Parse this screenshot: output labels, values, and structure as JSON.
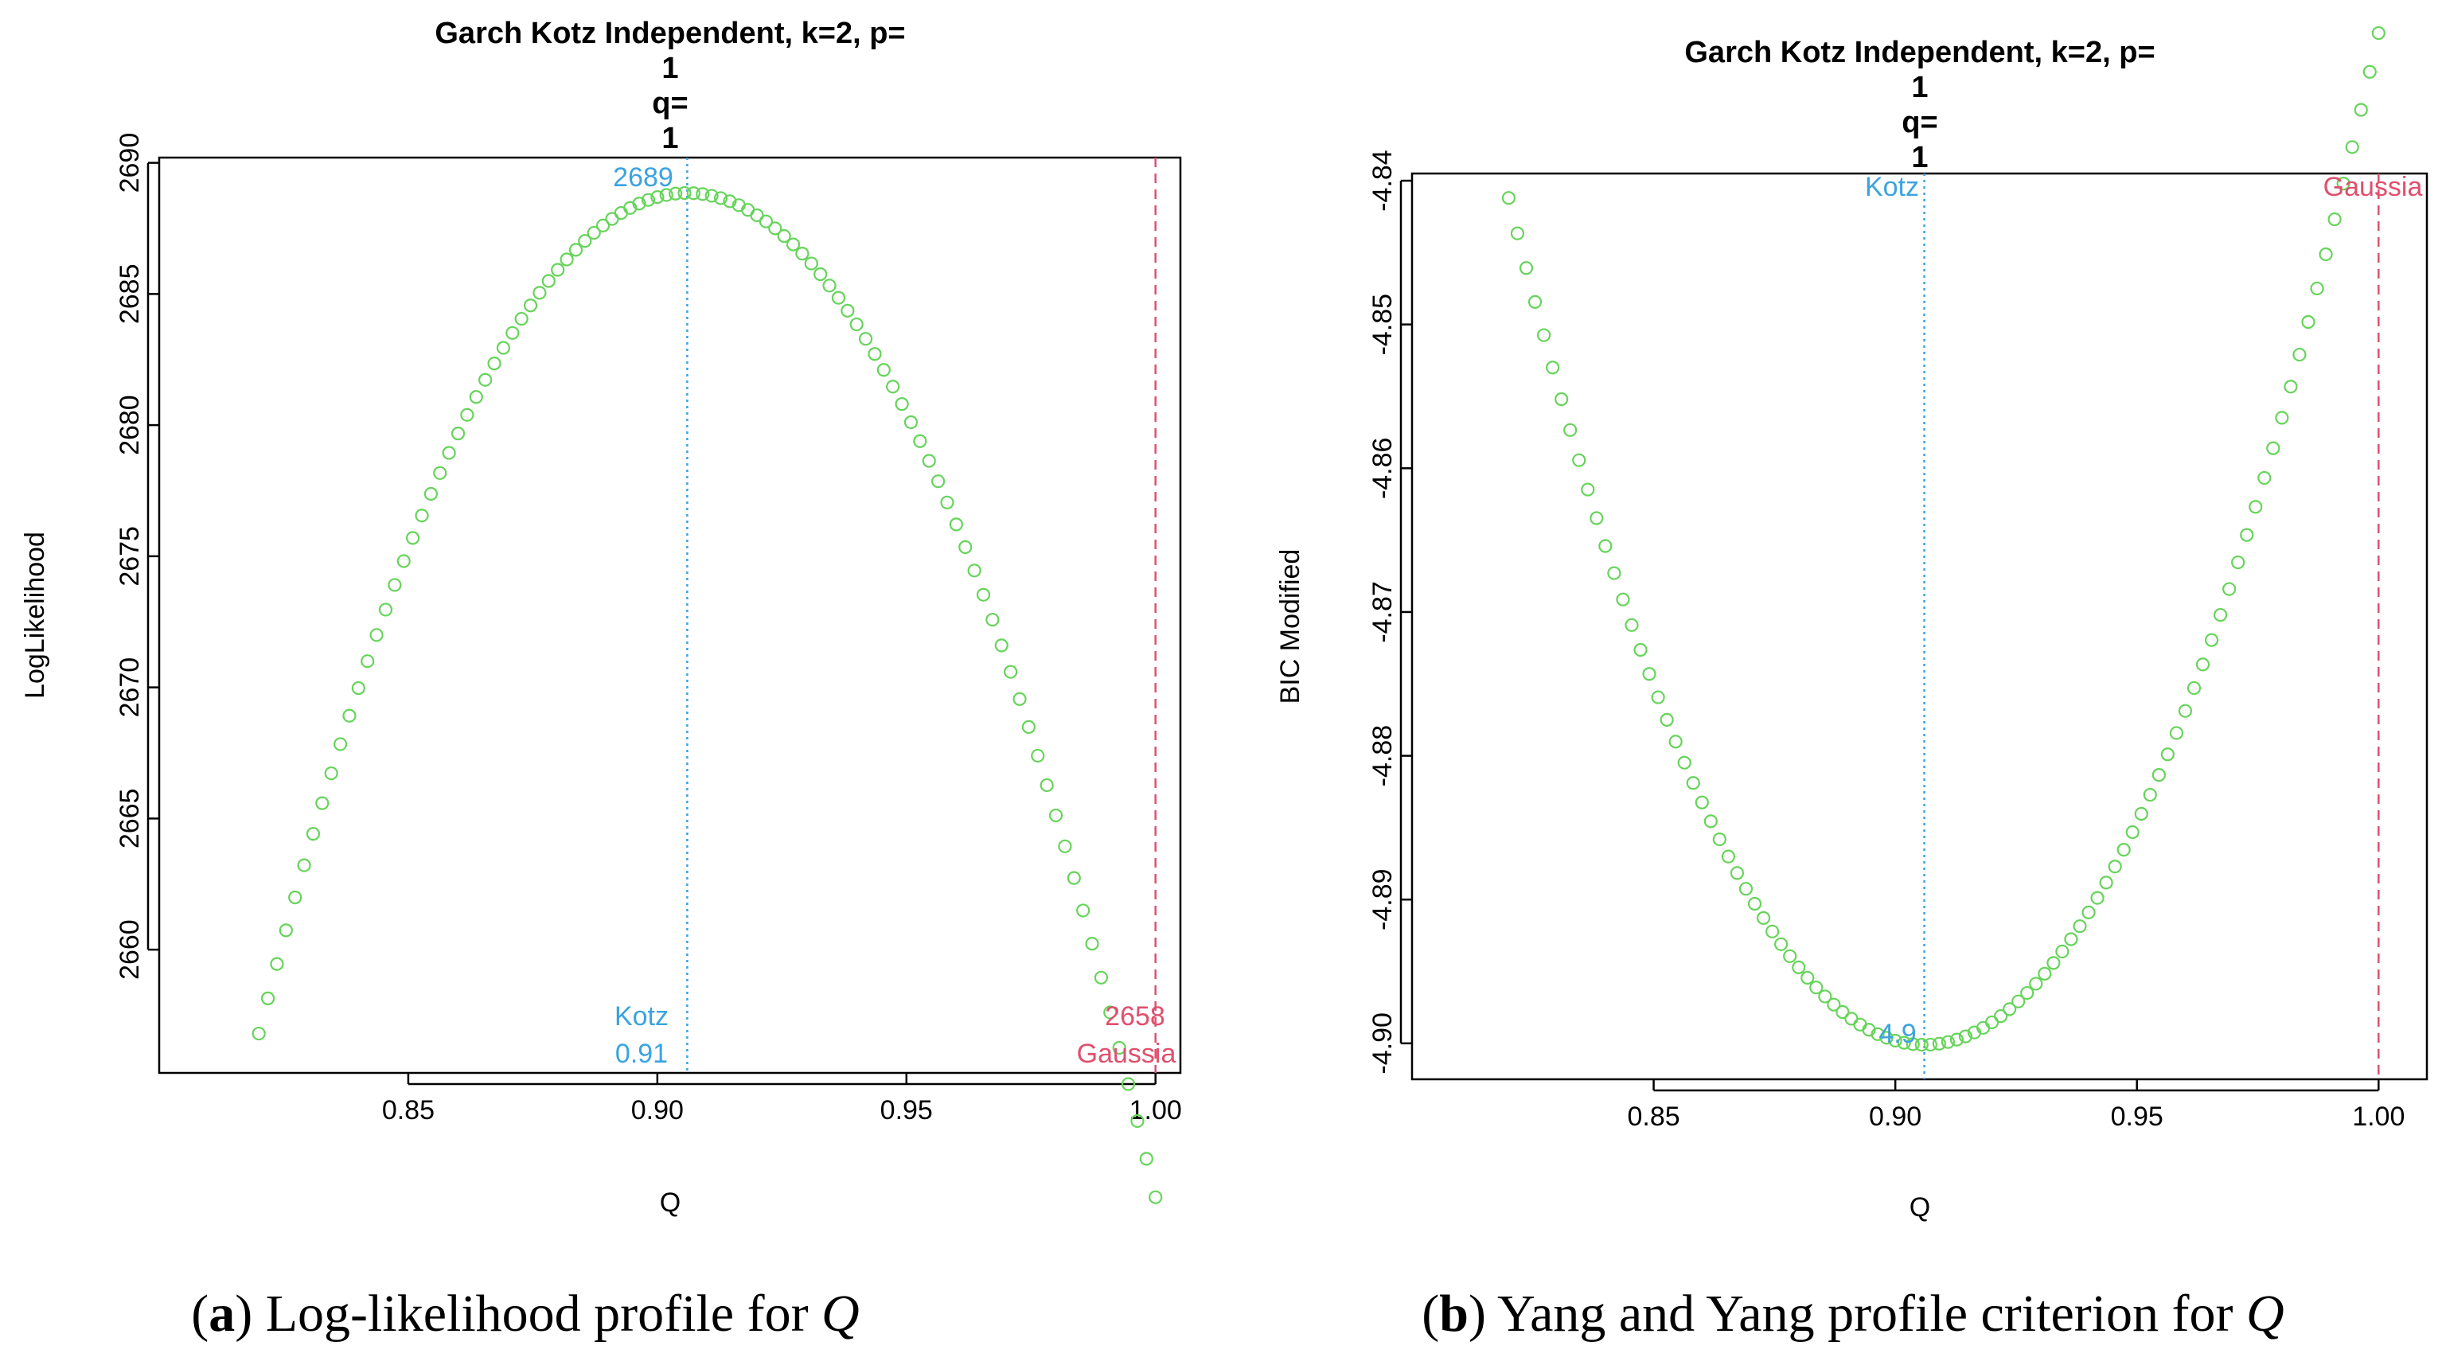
{
  "colors": {
    "points": "#66d45a",
    "kotz": "#3ba3e0",
    "gaussian": "#e0506e",
    "axis": "#000000"
  },
  "panels": [
    {
      "title_lines": [
        "Garch Kotz Independent, k=2, p=",
        "1",
        "q=",
        "1"
      ],
      "caption": {
        "prefix": "(",
        "letter": "a",
        "suffix": ") Log-likelihood profile for ",
        "symbol": "Q"
      },
      "annotations": {
        "kotz_top": "2689",
        "kotz_label": "Kotz",
        "kotz_value": "0.91",
        "gaussian_value": "2658",
        "gaussian_label": "Gaussia"
      }
    },
    {
      "title_lines": [
        "Garch Kotz Independent, k=2, p=",
        "1",
        "q=",
        "1"
      ],
      "caption": {
        "prefix": "(",
        "letter": "b",
        "suffix": ") Yang and Yang profile criterion for ",
        "symbol": "Q"
      },
      "annotations": {
        "kotz_label": "Kotz",
        "gaussian_label": "Gaussia",
        "kotz_bottom": "4.9"
      }
    }
  ],
  "chart_data": [
    {
      "type": "scatter",
      "xlabel": "Q",
      "ylabel": "LogLikelihood",
      "x_ticks": [
        "0.85",
        "0.90",
        "0.95",
        "1.00"
      ],
      "y_ticks": [
        "2660",
        "2665",
        "2670",
        "2675",
        "2680",
        "2685",
        "2690"
      ],
      "xlim": [
        0.8,
        1.005
      ],
      "ylim": [
        2655.3,
        2690.2
      ],
      "grid": false,
      "curve": {
        "shape": "parabola",
        "x_from": 0.82,
        "x_to": 1.0,
        "n": 100,
        "vertex_x": 0.906,
        "vertex_y": 2688.85,
        "y_at_x_from": 2656.8
      },
      "vlines": [
        {
          "x": 0.906,
          "style": "dotted",
          "color": "kotz",
          "label": "Kotz"
        },
        {
          "x": 1.0,
          "style": "dashed",
          "color": "gaussian",
          "label": "Gaussia"
        }
      ]
    },
    {
      "type": "scatter",
      "xlabel": "Q",
      "ylabel": "BIC Modified",
      "x_ticks": [
        "0.85",
        "0.90",
        "0.95",
        "1.00"
      ],
      "y_ticks": [
        "-4.84",
        "-4.85",
        "-4.86",
        "-4.87",
        "-4.88",
        "-4.89",
        "-4.90"
      ],
      "xlim": [
        0.8,
        1.01
      ],
      "ylim": [
        -4.9025,
        -4.8395
      ],
      "grid": false,
      "curve": {
        "shape": "parabola",
        "x_from": 0.82,
        "x_to": 1.0,
        "n": 100,
        "vertex_x": 0.906,
        "vertex_y": -4.9001,
        "y_at_x_from": -4.8412
      },
      "vlines": [
        {
          "x": 0.906,
          "style": "dotted",
          "color": "kotz",
          "label": "Kotz"
        },
        {
          "x": 1.0,
          "style": "dashed",
          "color": "gaussian",
          "label": "Gaussia"
        }
      ]
    }
  ]
}
